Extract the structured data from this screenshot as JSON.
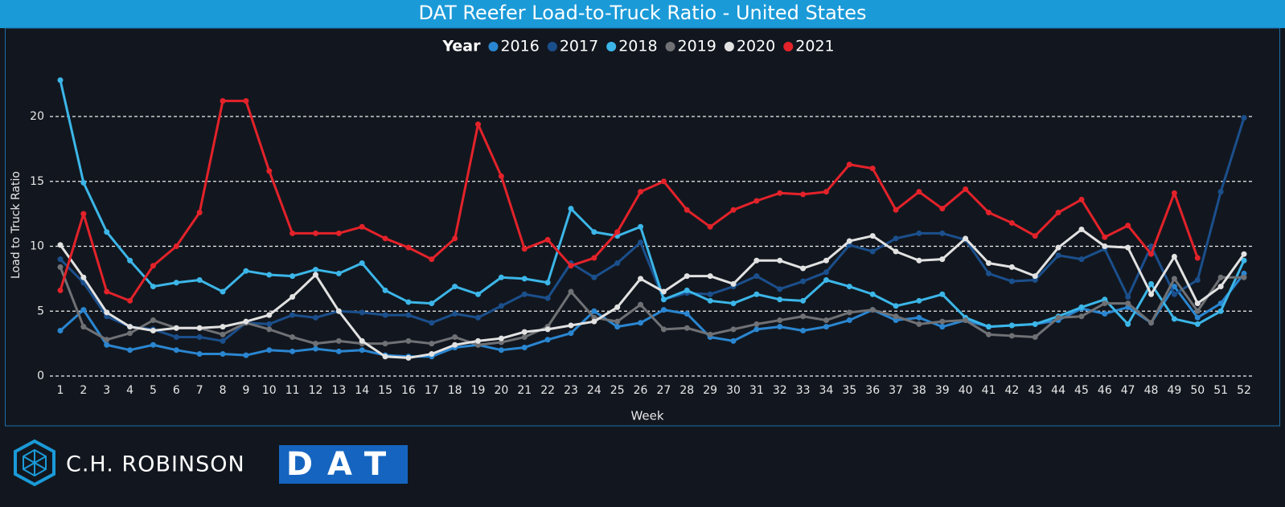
{
  "chart_data": {
    "type": "line",
    "title": "DAT Reefer Load-to-Truck Ratio - United States",
    "legend_title": "Year",
    "x_label": "Week",
    "y_label": "Load to Truck Ratio",
    "categories": [
      1,
      2,
      3,
      4,
      5,
      6,
      7,
      8,
      9,
      10,
      11,
      12,
      13,
      14,
      15,
      16,
      17,
      18,
      19,
      20,
      21,
      22,
      23,
      24,
      25,
      26,
      27,
      28,
      29,
      30,
      31,
      32,
      33,
      34,
      35,
      36,
      37,
      38,
      39,
      40,
      41,
      42,
      43,
      44,
      45,
      46,
      47,
      48,
      49,
      50,
      51,
      52
    ],
    "ylim": [
      0,
      23.5
    ],
    "yticks": [
      0,
      5,
      10,
      15,
      20
    ],
    "grid": true,
    "series": [
      {
        "name": "2016",
        "color": "#2a86d1",
        "values": [
          3.5,
          5.1,
          2.4,
          2.0,
          2.4,
          2.0,
          1.7,
          1.7,
          1.6,
          2.0,
          1.9,
          2.1,
          1.9,
          2.0,
          1.6,
          1.5,
          1.5,
          2.2,
          2.4,
          2.0,
          2.2,
          2.8,
          3.3,
          5.0,
          3.8,
          4.1,
          5.1,
          4.8,
          3.0,
          2.7,
          3.6,
          3.8,
          3.5,
          3.8,
          4.3,
          5.1,
          4.3,
          4.5,
          3.8,
          4.3,
          3.8,
          3.9,
          4.0,
          4.3,
          5.2,
          4.8,
          5.3,
          4.1,
          6.9,
          4.5,
          5.6,
          7.9
        ]
      },
      {
        "name": "2017",
        "color": "#1b4f8c",
        "values": [
          9.0,
          7.2,
          4.6,
          3.8,
          3.6,
          3.0,
          3.0,
          2.7,
          4.1,
          4.0,
          4.7,
          4.5,
          5.0,
          4.9,
          4.7,
          4.7,
          4.1,
          4.8,
          4.5,
          5.4,
          6.3,
          6.0,
          8.7,
          7.6,
          8.7,
          10.3,
          5.9,
          6.4,
          6.3,
          6.9,
          7.7,
          6.7,
          7.3,
          8.0,
          10.1,
          9.6,
          10.6,
          11.0,
          11.0,
          10.5,
          7.9,
          7.3,
          7.4,
          9.3,
          9.0,
          9.8,
          6.1,
          10.0,
          6.3,
          7.4,
          14.2,
          19.9
        ]
      },
      {
        "name": "2018",
        "color": "#3cb6e8",
        "values": [
          22.8,
          14.9,
          11.1,
          8.9,
          6.9,
          7.2,
          7.4,
          6.5,
          8.1,
          7.8,
          7.7,
          8.2,
          7.9,
          8.7,
          6.6,
          5.7,
          5.6,
          6.9,
          6.3,
          7.6,
          7.5,
          7.2,
          12.9,
          11.1,
          10.8,
          11.5,
          5.9,
          6.6,
          5.8,
          5.6,
          6.3,
          5.9,
          5.8,
          7.4,
          6.9,
          6.3,
          5.4,
          5.8,
          6.3,
          4.5,
          3.8,
          3.9,
          4.0,
          4.6,
          5.3,
          5.9,
          4.0,
          7.1,
          4.4,
          4.0,
          5.0,
          8.9
        ]
      },
      {
        "name": "2019",
        "color": "#6f7175",
        "values": [
          8.4,
          3.8,
          2.8,
          3.3,
          4.3,
          3.7,
          3.7,
          3.2,
          4.1,
          3.6,
          3.0,
          2.5,
          2.7,
          2.5,
          2.5,
          2.7,
          2.5,
          3.0,
          2.4,
          2.6,
          3.0,
          3.8,
          6.5,
          4.5,
          4.2,
          5.5,
          3.6,
          3.7,
          3.2,
          3.6,
          4.0,
          4.3,
          4.6,
          4.3,
          4.9,
          5.1,
          4.6,
          4.0,
          4.2,
          4.3,
          3.2,
          3.1,
          3.0,
          4.5,
          4.6,
          5.6,
          5.6,
          4.1,
          7.5,
          5.0,
          7.6,
          7.6
        ]
      },
      {
        "name": "2020",
        "color": "#e2e2e2",
        "values": [
          10.1,
          7.6,
          4.9,
          3.8,
          3.5,
          3.7,
          3.7,
          3.8,
          4.2,
          4.7,
          6.1,
          7.8,
          5.0,
          2.7,
          1.5,
          1.4,
          1.7,
          2.4,
          2.7,
          2.9,
          3.4,
          3.6,
          3.9,
          4.2,
          5.3,
          7.5,
          6.5,
          7.7,
          7.7,
          7.1,
          8.9,
          8.9,
          8.3,
          8.9,
          10.4,
          10.8,
          9.6,
          8.9,
          9.0,
          10.6,
          8.7,
          8.4,
          7.7,
          9.9,
          11.3,
          10.0,
          9.9,
          6.3,
          9.2,
          5.6,
          6.9,
          9.4
        ]
      },
      {
        "name": "2021",
        "color": "#e3222a",
        "values": [
          6.6,
          12.5,
          6.5,
          5.8,
          8.5,
          10.0,
          12.6,
          21.2,
          21.2,
          15.8,
          11.0,
          11.0,
          11.0,
          11.5,
          10.6,
          9.9,
          9.0,
          10.6,
          19.4,
          15.4,
          9.8,
          10.5,
          8.5,
          9.1,
          11.1,
          14.2,
          15.0,
          12.8,
          11.5,
          12.8,
          13.5,
          14.1,
          14.0,
          14.2,
          16.3,
          16.0,
          12.8,
          14.2,
          12.9,
          14.4,
          12.6,
          11.8,
          10.8,
          12.6,
          13.6,
          10.7,
          11.6,
          9.4,
          14.1,
          9.1,
          null,
          null
        ]
      }
    ]
  },
  "footer": {
    "left_logo": "C.H. ROBINSON",
    "right_logo": "DAT"
  }
}
